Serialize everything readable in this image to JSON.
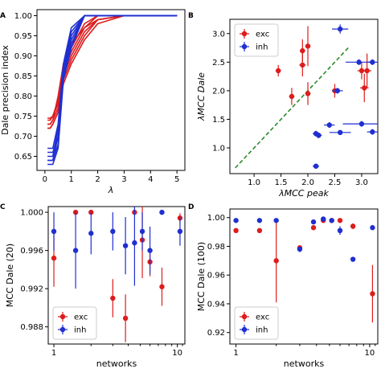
{
  "colors": {
    "exc": "#dd1c1c",
    "inh": "#1f2fd0",
    "dashed": "#2a8a2a"
  },
  "chart_data": [
    {
      "panel_label": "A",
      "type": "line",
      "xlabel": "λ",
      "ylabel": "Dale precision index",
      "xlim": [
        -0.3,
        5.3
      ],
      "ylim": [
        0.615,
        1.015
      ],
      "xticks": [
        "0",
        "1",
        "2",
        "3",
        "4",
        "5"
      ],
      "yticks": [
        "0.65",
        "0.70",
        "0.75",
        "0.80",
        "0.85",
        "0.90",
        "0.95",
        "1.00"
      ],
      "x": [
        0.1,
        0.2,
        0.3,
        0.5,
        0.7,
        1.0,
        1.5,
        2.0,
        3.0,
        4.0,
        5.0
      ],
      "series": [
        {
          "group": "exc",
          "values": [
            0.72,
            0.72,
            0.73,
            0.76,
            0.84,
            0.89,
            0.95,
            0.99,
            1.0,
            1.0,
            1.0
          ]
        },
        {
          "group": "exc",
          "values": [
            0.73,
            0.73,
            0.74,
            0.77,
            0.85,
            0.9,
            0.96,
            0.99,
            1.0,
            1.0,
            1.0
          ]
        },
        {
          "group": "exc",
          "values": [
            0.745,
            0.745,
            0.75,
            0.79,
            0.86,
            0.91,
            0.97,
            1.0,
            1.0,
            1.0,
            1.0
          ]
        },
        {
          "group": "exc",
          "values": [
            0.74,
            0.74,
            0.75,
            0.78,
            0.87,
            0.92,
            0.98,
            1.0,
            1.0,
            1.0,
            1.0
          ]
        },
        {
          "group": "exc",
          "values": [
            0.72,
            0.72,
            0.73,
            0.76,
            0.83,
            0.88,
            0.94,
            0.98,
            1.0,
            1.0,
            1.0
          ]
        },
        {
          "group": "exc",
          "values": [
            0.73,
            0.73,
            0.74,
            0.8,
            0.88,
            0.93,
            0.97,
            0.99,
            1.0,
            1.0,
            1.0
          ]
        },
        {
          "group": "inh",
          "values": [
            0.66,
            0.66,
            0.66,
            0.7,
            0.86,
            0.94,
            1.0,
            1.0,
            1.0,
            1.0,
            1.0
          ]
        },
        {
          "group": "inh",
          "values": [
            0.64,
            0.64,
            0.64,
            0.68,
            0.85,
            0.93,
            1.0,
            1.0,
            1.0,
            1.0,
            1.0
          ]
        },
        {
          "group": "inh",
          "values": [
            0.63,
            0.63,
            0.63,
            0.67,
            0.84,
            0.92,
            1.0,
            1.0,
            1.0,
            1.0,
            1.0
          ]
        },
        {
          "group": "inh",
          "values": [
            0.65,
            0.65,
            0.65,
            0.72,
            0.87,
            0.96,
            1.0,
            1.0,
            1.0,
            1.0,
            1.0
          ]
        },
        {
          "group": "inh",
          "values": [
            0.67,
            0.67,
            0.67,
            0.73,
            0.88,
            0.97,
            1.0,
            1.0,
            1.0,
            1.0,
            1.0
          ]
        },
        {
          "group": "inh",
          "values": [
            0.64,
            0.64,
            0.64,
            0.7,
            0.86,
            0.95,
            1.0,
            1.0,
            1.0,
            1.0,
            1.0
          ]
        }
      ]
    },
    {
      "panel_label": "B",
      "type": "scatter",
      "xlabel": "λMCC peak",
      "ylabel": "λMCC Dale",
      "xlim": [
        0.55,
        3.3
      ],
      "ylim": [
        0.55,
        3.25
      ],
      "xticks": [
        1.0,
        1.5,
        2.0,
        2.5,
        3.0
      ],
      "xtick_labels": [
        "1.0",
        "1.5",
        "2.0",
        "2.5",
        "3.0"
      ],
      "yticks": [
        1.0,
        1.5,
        2.0,
        2.5,
        3.0
      ],
      "ytick_labels": [
        "1.0",
        "1.5",
        "2.0",
        "2.5",
        "3.0"
      ],
      "diagonal": [
        [
          0.65,
          0.65
        ],
        [
          2.75,
          2.75
        ]
      ],
      "legend": {
        "position": "top-left",
        "entries": [
          {
            "group": "exc",
            "label": "exc"
          },
          {
            "group": "inh",
            "label": "inh"
          }
        ]
      },
      "series": [
        {
          "group": "exc",
          "points": [
            {
              "x": 1.45,
              "y": 2.35,
              "xerr": 0.05,
              "yerr": 0.1
            },
            {
              "x": 1.7,
              "y": 1.9,
              "xerr": 0.05,
              "yerr": 0.15
            },
            {
              "x": 1.9,
              "y": 2.45,
              "xerr": 0.06,
              "yerr": 0.2
            },
            {
              "x": 1.9,
              "y": 2.7,
              "xerr": 0.05,
              "yerr": 0.2
            },
            {
              "x": 2.0,
              "y": 2.78,
              "xerr": 0.05,
              "yerr": 0.35
            },
            {
              "x": 2.0,
              "y": 1.95,
              "xerr": 0.05,
              "yerr": 0.2
            },
            {
              "x": 2.5,
              "y": 2.0,
              "xerr": 0.05,
              "yerr": 0.12
            },
            {
              "x": 3.0,
              "y": 2.35,
              "xerr": 0.08,
              "yerr": 0.15
            },
            {
              "x": 3.05,
              "y": 2.05,
              "xerr": 0.08,
              "yerr": 0.25
            },
            {
              "x": 3.1,
              "y": 2.35,
              "xerr": 0.08,
              "yerr": 0.3
            }
          ]
        },
        {
          "group": "inh",
          "points": [
            {
              "x": 2.15,
              "y": 0.68,
              "xerr": 0.06,
              "yerr": 0.02
            },
            {
              "x": 2.15,
              "y": 1.25,
              "xerr": 0.06,
              "yerr": 0.05
            },
            {
              "x": 2.2,
              "y": 1.22,
              "xerr": 0.06,
              "yerr": 0.05
            },
            {
              "x": 2.4,
              "y": 1.4,
              "xerr": 0.1,
              "yerr": 0.05
            },
            {
              "x": 2.6,
              "y": 1.27,
              "xerr": 0.2,
              "yerr": 0.04
            },
            {
              "x": 2.55,
              "y": 2.0,
              "xerr": 0.1,
              "yerr": 0.05
            },
            {
              "x": 2.6,
              "y": 3.08,
              "xerr": 0.15,
              "yerr": 0.08
            },
            {
              "x": 2.95,
              "y": 2.5,
              "xerr": 0.25,
              "yerr": 0.05
            },
            {
              "x": 3.0,
              "y": 1.42,
              "xerr": 0.35,
              "yerr": 0.05
            },
            {
              "x": 3.2,
              "y": 1.28,
              "xerr": 0.1,
              "yerr": 0.05
            },
            {
              "x": 3.2,
              "y": 2.5,
              "xerr": 0.1,
              "yerr": 0.05
            }
          ]
        }
      ]
    },
    {
      "panel_label": "C",
      "type": "scatter",
      "xlabel": "networks",
      "ylabel": "MCC Dale (20)",
      "xscale": "log",
      "xlim": [
        0.9,
        11.5
      ],
      "ylim": [
        0.9862,
        1.0006
      ],
      "xticks": [
        1,
        10
      ],
      "xtick_labels": [
        "1",
        "10"
      ],
      "yticks": [
        0.988,
        0.992,
        0.996,
        1.0
      ],
      "ytick_labels": [
        "0.988",
        "0.992",
        "0.996",
        "1.000"
      ],
      "legend": {
        "position": "bottom-left",
        "entries": [
          {
            "group": "exc",
            "label": "exc"
          },
          {
            "group": "inh",
            "label": "inh"
          }
        ]
      },
      "series": [
        {
          "group": "exc",
          "points": [
            {
              "x": 1,
              "y": 0.9952,
              "yerr": 0.003
            },
            {
              "x": 1.5,
              "y": 1.0,
              "yerr": 0
            },
            {
              "x": 2,
              "y": 1.0,
              "yerr": 0
            },
            {
              "x": 3,
              "y": 0.991,
              "yerr": 0.002
            },
            {
              "x": 3.8,
              "y": 0.9889,
              "yerr": 0.0025
            },
            {
              "x": 4.5,
              "y": 1.0,
              "yerr": 0
            },
            {
              "x": 5.2,
              "y": 0.9971,
              "yerr": 0.004
            },
            {
              "x": 6,
              "y": 0.9948,
              "yerr": 0.0015
            },
            {
              "x": 7.5,
              "y": 0.9922,
              "yerr": 0.002
            },
            {
              "x": 10.5,
              "y": 0.9994,
              "yerr": 0.0005
            }
          ]
        },
        {
          "group": "inh",
          "points": [
            {
              "x": 1,
              "y": 0.998,
              "yerr": 0.002
            },
            {
              "x": 1.5,
              "y": 0.996,
              "yerr": 0.004
            },
            {
              "x": 2,
              "y": 0.9978,
              "yerr": 0.0022
            },
            {
              "x": 3,
              "y": 0.998,
              "yerr": 0.002
            },
            {
              "x": 3.8,
              "y": 0.9965,
              "yerr": 0.003
            },
            {
              "x": 4.5,
              "y": 0.9968,
              "yerr": 0.0045
            },
            {
              "x": 5.2,
              "y": 0.998,
              "yerr": 0.002
            },
            {
              "x": 6,
              "y": 0.996,
              "yerr": 0.0025
            },
            {
              "x": 7.5,
              "y": 1.0,
              "yerr": 0
            },
            {
              "x": 10.5,
              "y": 0.998,
              "yerr": 0.0015
            }
          ]
        }
      ]
    },
    {
      "panel_label": "D",
      "type": "scatter",
      "xlabel": "networks",
      "ylabel": "MCC Dale (100)",
      "xscale": "log",
      "xlim": [
        0.9,
        11.5
      ],
      "ylim": [
        0.912,
        1.006
      ],
      "xticks": [
        1,
        10
      ],
      "xtick_labels": [
        "1",
        "10"
      ],
      "yticks": [
        0.92,
        0.94,
        0.96,
        0.98,
        1.0
      ],
      "ytick_labels": [
        "0.92",
        "0.94",
        "0.96",
        "0.98",
        "1.00"
      ],
      "legend": {
        "position": "bottom-left",
        "entries": [
          {
            "group": "exc",
            "label": "exc"
          },
          {
            "group": "inh",
            "label": "inh"
          }
        ]
      },
      "series": [
        {
          "group": "exc",
          "points": [
            {
              "x": 1,
              "y": 0.991,
              "yerr": 0.0015
            },
            {
              "x": 1.5,
              "y": 0.991,
              "yerr": 0.0015
            },
            {
              "x": 2,
              "y": 0.97,
              "yerr": 0.029
            },
            {
              "x": 3,
              "y": 0.979,
              "yerr": 0.0015
            },
            {
              "x": 3.8,
              "y": 0.993,
              "yerr": 0.0015
            },
            {
              "x": 4.5,
              "y": 0.998,
              "yerr": 0.001
            },
            {
              "x": 5.2,
              "y": 0.998,
              "yerr": 0.001
            },
            {
              "x": 6,
              "y": 0.998,
              "yerr": 0.001
            },
            {
              "x": 7.5,
              "y": 0.994,
              "yerr": 0.002
            },
            {
              "x": 10.5,
              "y": 0.947,
              "yerr": 0.02
            }
          ]
        },
        {
          "group": "inh",
          "points": [
            {
              "x": 1,
              "y": 0.998,
              "yerr": 0.0008
            },
            {
              "x": 1.5,
              "y": 0.998,
              "yerr": 0.0008
            },
            {
              "x": 2,
              "y": 0.998,
              "yerr": 0.0008
            },
            {
              "x": 3,
              "y": 0.978,
              "yerr": 0.002
            },
            {
              "x": 3.8,
              "y": 0.997,
              "yerr": 0.001
            },
            {
              "x": 4.5,
              "y": 0.999,
              "yerr": 0.001
            },
            {
              "x": 5.2,
              "y": 0.998,
              "yerr": 0.001
            },
            {
              "x": 6,
              "y": 0.991,
              "yerr": 0.003
            },
            {
              "x": 7.5,
              "y": 0.971,
              "yerr": 0.001
            },
            {
              "x": 10.5,
              "y": 0.993,
              "yerr": 0.0015
            }
          ]
        }
      ]
    }
  ]
}
